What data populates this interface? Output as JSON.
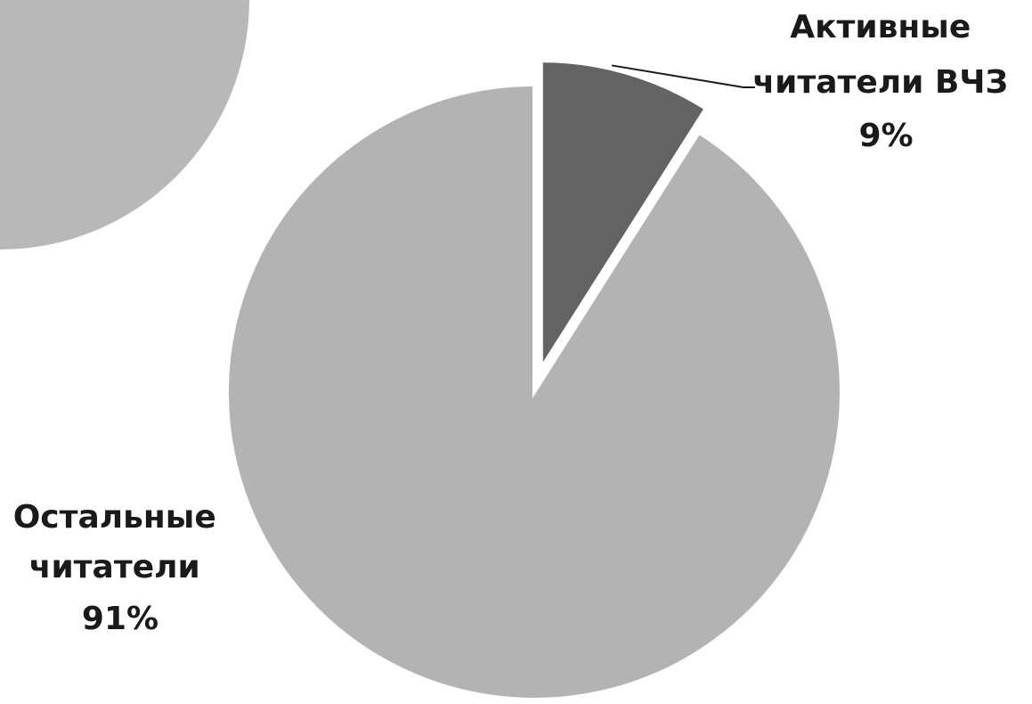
{
  "chart_data": {
    "type": "pie",
    "slices": [
      {
        "name": "Активные читатели ВЧЗ",
        "label_lines": [
          "Активные",
          "читатели ВЧЗ",
          "9%"
        ],
        "value": 9,
        "color": "#636363",
        "exploded": true
      },
      {
        "name": "Остальные читатели",
        "label_lines": [
          "Остальные",
          "читатели",
          "91%"
        ],
        "value": 91,
        "color": "#b3b3b3",
        "exploded": false
      }
    ],
    "decoration_color": "#b8b8b8",
    "separator_color": "#ffffff",
    "leader_line_color": "#1a1a1a"
  }
}
